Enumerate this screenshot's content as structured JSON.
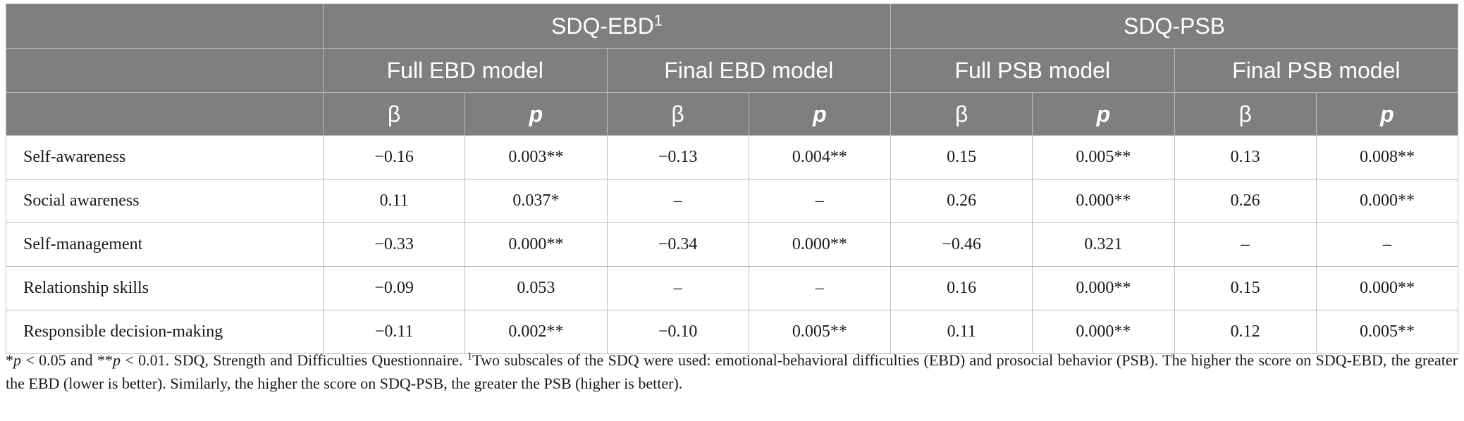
{
  "groups": {
    "ebd": "SDQ-EBD",
    "ebd_sup": "1",
    "psb": "SDQ-PSB"
  },
  "models": {
    "full_ebd": "Full EBD model",
    "final_ebd": "Final EBD model",
    "full_psb": "Full PSB model",
    "final_psb": "Final PSB model"
  },
  "stats": {
    "beta": "β",
    "p": "p"
  },
  "rows": [
    {
      "label": "Self-awareness",
      "values": [
        "−0.16",
        "0.003**",
        "−0.13",
        "0.004**",
        "0.15",
        "0.005**",
        "0.13",
        "0.008**"
      ]
    },
    {
      "label": "Social awareness",
      "values": [
        "0.11",
        "0.037*",
        "–",
        "–",
        "0.26",
        "0.000**",
        "0.26",
        "0.000**"
      ]
    },
    {
      "label": "Self-management",
      "values": [
        "−0.33",
        "0.000**",
        "−0.34",
        "0.000**",
        "−0.46",
        "0.321",
        "–",
        "–"
      ]
    },
    {
      "label": "Relationship skills",
      "values": [
        "−0.09",
        "0.053",
        "–",
        "–",
        "0.16",
        "0.000**",
        "0.15",
        "0.000**"
      ]
    },
    {
      "label": "Responsible decision-making",
      "values": [
        "−0.11",
        "0.002**",
        "−0.10",
        "0.005**",
        "0.11",
        "0.000**",
        "0.12",
        "0.005**"
      ]
    }
  ],
  "footnote": {
    "star1": "*",
    "p1": "p",
    "mid1": " < 0.05 and **",
    "p2": "p",
    "mid2": " < 0.01. SDQ, Strength and Difficulties Questionnaire. ",
    "sup": "1",
    "rest": "Two subscales of the SDQ were used: emotional-behavioral difficulties (EBD) and prosocial behavior (PSB). The higher the score on SDQ-EBD, the greater the EBD (lower is better). Similarly, the higher the score on SDQ-PSB, the greater the PSB (higher is better)."
  }
}
